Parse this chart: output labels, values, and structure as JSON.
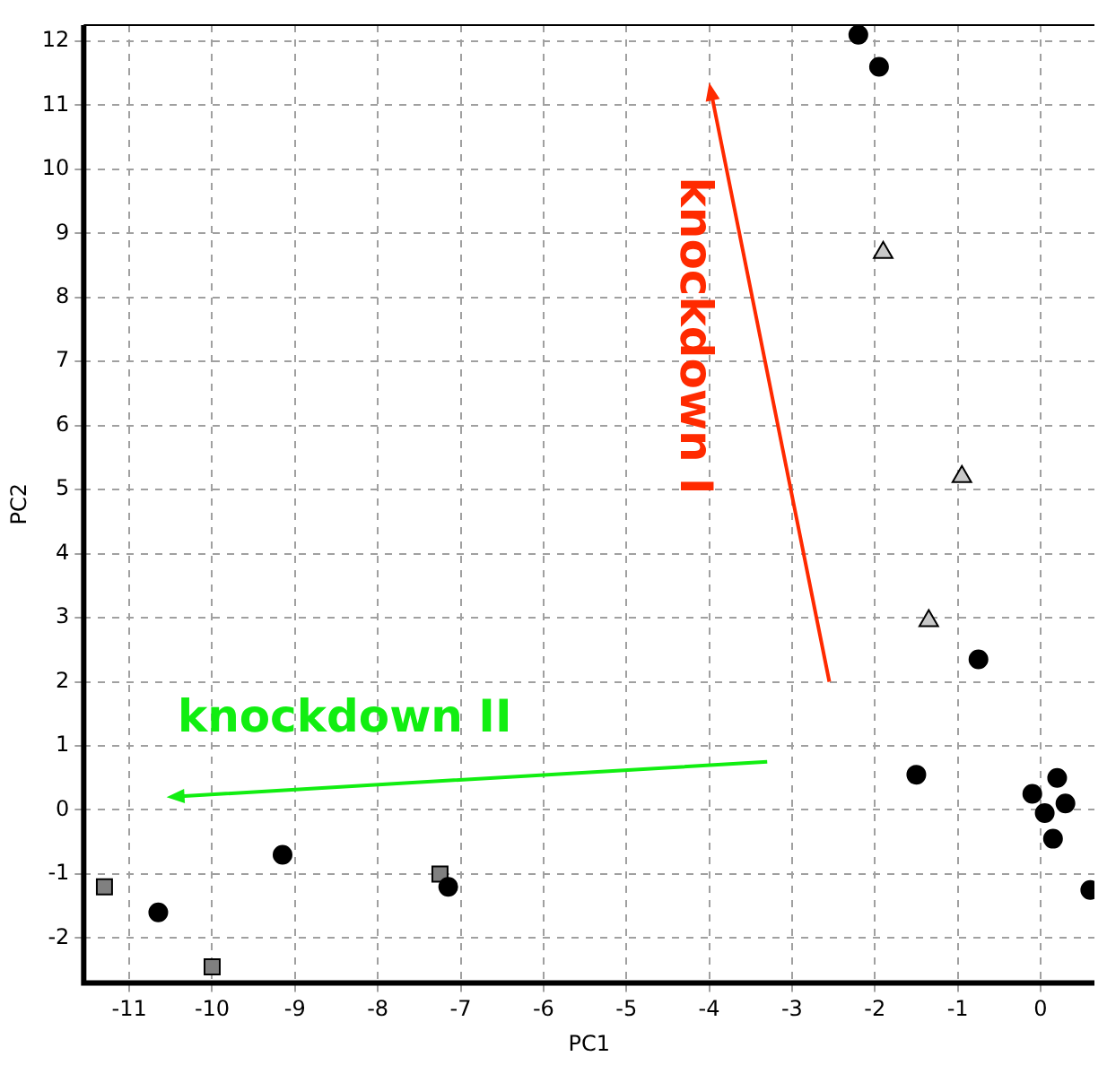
{
  "chart_data": {
    "type": "scatter",
    "xlabel": "PC1",
    "ylabel": "PC2",
    "xlim": [
      -11.55,
      0.65
    ],
    "ylim": [
      -2.7,
      12.25
    ],
    "xticks": [
      -11,
      -10,
      -9,
      -8,
      -7,
      -6,
      -5,
      -4,
      -3,
      -2,
      -1,
      0
    ],
    "yticks": [
      -2,
      -1,
      0,
      1,
      2,
      3,
      4,
      5,
      6,
      7,
      8,
      9,
      10,
      11,
      12
    ],
    "grid": true,
    "legend": false,
    "annotations": [
      "knockdown I",
      "knockdown II"
    ],
    "series": [
      {
        "color": "#000000",
        "marker": "circle",
        "x": [
          -2.2,
          -1.95,
          -0.75,
          -1.5,
          -0.1,
          0.2,
          0.3,
          0.05,
          0.15,
          0.6,
          -9.15,
          -7.15,
          -10.65
        ],
        "values": [
          12.1,
          11.6,
          2.35,
          0.55,
          0.25,
          0.5,
          0.1,
          -0.05,
          -0.45,
          -1.25,
          -0.7,
          -1.2,
          -1.6
        ]
      },
      {
        "color": "#c8c8c8",
        "marker": "triangle",
        "x": [
          -1.9,
          -0.95,
          -1.35
        ],
        "values": [
          8.7,
          5.2,
          2.95
        ]
      },
      {
        "color": "#808080",
        "marker": "square",
        "x": [
          -11.3,
          -7.25,
          -10.0
        ],
        "values": [
          -1.2,
          -1.0,
          -2.45
        ]
      }
    ]
  }
}
